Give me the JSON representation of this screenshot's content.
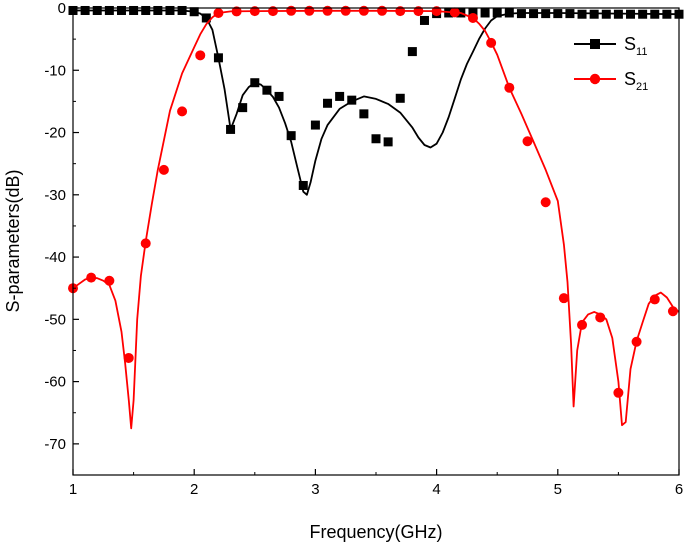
{
  "chart_data": {
    "type": "line",
    "xlabel": "Frequency(GHz)",
    "ylabel": "S-parameters(dB)",
    "xlim": [
      1,
      6
    ],
    "ylim": [
      -75,
      0
    ],
    "xticks": [
      1,
      2,
      3,
      4,
      5,
      6
    ],
    "yticks": [
      0,
      -10,
      -20,
      -30,
      -40,
      -50,
      -60,
      -70
    ],
    "grid": false,
    "legend_position": "top-right",
    "series": [
      {
        "name": "S11",
        "name_main": "S",
        "name_sub": "11",
        "color": "#000000",
        "marker": "square",
        "curve_x": [
          1.0,
          1.5,
          1.8,
          1.9,
          2.0,
          2.05,
          2.1,
          2.15,
          2.2,
          2.25,
          2.3,
          2.35,
          2.4,
          2.45,
          2.5,
          2.55,
          2.6,
          2.65,
          2.7,
          2.75,
          2.8,
          2.85,
          2.9,
          2.93,
          2.96,
          3.0,
          3.05,
          3.1,
          3.2,
          3.3,
          3.4,
          3.5,
          3.6,
          3.7,
          3.8,
          3.85,
          3.9,
          3.95,
          4.0,
          4.05,
          4.1,
          4.15,
          4.2,
          4.25,
          4.3,
          4.35,
          4.4,
          4.45,
          4.5,
          4.6,
          4.7,
          5.0,
          5.5,
          6.0
        ],
        "curve_y": [
          -0.4,
          -0.4,
          -0.4,
          -0.4,
          -0.6,
          -0.9,
          -1.6,
          -3.5,
          -8.0,
          -13.0,
          -19.5,
          -17.0,
          -14.0,
          -12.7,
          -12.0,
          -12.3,
          -13.2,
          -14.3,
          -16.0,
          -18.5,
          -21.5,
          -25.5,
          -29.5,
          -30.0,
          -28.0,
          -24.5,
          -21.0,
          -18.8,
          -16.2,
          -15.0,
          -14.2,
          -14.6,
          -15.4,
          -16.8,
          -19.2,
          -20.8,
          -22.0,
          -22.4,
          -21.8,
          -20.0,
          -17.5,
          -14.5,
          -11.5,
          -9.0,
          -7.0,
          -5.0,
          -3.3,
          -2.0,
          -1.3,
          -0.9,
          -0.8,
          -0.8,
          -0.9,
          -1.0
        ],
        "marker_x": [
          1.0,
          1.1,
          1.2,
          1.3,
          1.4,
          1.5,
          1.6,
          1.7,
          1.8,
          1.9,
          2.0,
          2.1,
          2.2,
          2.3,
          2.4,
          2.5,
          2.6,
          2.7,
          2.8,
          2.9,
          3.0,
          3.1,
          3.2,
          3.3,
          3.4,
          3.5,
          3.6,
          3.7,
          3.8,
          3.9,
          4.0,
          4.1,
          4.2,
          4.3,
          4.4,
          4.5,
          4.6,
          4.7,
          4.8,
          4.9,
          5.0,
          5.1,
          5.2,
          5.3,
          5.4,
          5.5,
          5.6,
          5.7,
          5.8,
          5.9,
          6.0
        ],
        "marker_y": [
          -0.4,
          -0.4,
          -0.4,
          -0.4,
          -0.4,
          -0.4,
          -0.4,
          -0.4,
          -0.4,
          -0.4,
          -0.6,
          -1.6,
          -8.0,
          -19.5,
          -16.0,
          -12.0,
          -13.2,
          -14.2,
          -20.5,
          -28.5,
          -18.8,
          -15.3,
          -14.2,
          -14.8,
          -17.0,
          -21.0,
          -21.5,
          -14.5,
          -7.0,
          -2.0,
          -0.9,
          -0.8,
          -0.8,
          -0.8,
          -0.8,
          -0.8,
          -0.8,
          -0.9,
          -0.9,
          -0.9,
          -0.9,
          -0.9,
          -1.0,
          -1.0,
          -1.0,
          -1.0,
          -1.0,
          -1.0,
          -1.0,
          -1.0,
          -1.0
        ]
      },
      {
        "name": "S21",
        "name_main": "S",
        "name_sub": "21",
        "color": "#ff0000",
        "marker": "circle",
        "curve_x": [
          1.0,
          1.05,
          1.1,
          1.15,
          1.2,
          1.25,
          1.3,
          1.35,
          1.4,
          1.43,
          1.46,
          1.48,
          1.5,
          1.53,
          1.56,
          1.6,
          1.65,
          1.7,
          1.8,
          1.9,
          2.0,
          2.05,
          2.1,
          2.15,
          2.2,
          2.3,
          2.5,
          3.0,
          3.5,
          4.0,
          4.2,
          4.3,
          4.35,
          4.4,
          4.45,
          4.5,
          4.6,
          4.7,
          4.8,
          4.9,
          5.0,
          5.05,
          5.08,
          5.11,
          5.13,
          5.16,
          5.2,
          5.25,
          5.3,
          5.35,
          5.4,
          5.45,
          5.5,
          5.53,
          5.56,
          5.6,
          5.65,
          5.7,
          5.75,
          5.8,
          5.85,
          5.9,
          5.95,
          6.0
        ],
        "curve_y": [
          -45.0,
          -44.3,
          -43.6,
          -43.3,
          -43.4,
          -43.8,
          -44.5,
          -47.0,
          -52.0,
          -57.0,
          -63.0,
          -67.5,
          -63.0,
          -50.0,
          -43.0,
          -37.5,
          -31.5,
          -26.0,
          -16.5,
          -10.5,
          -6.3,
          -4.2,
          -2.6,
          -1.5,
          -0.8,
          -0.55,
          -0.5,
          -0.45,
          -0.45,
          -0.5,
          -0.8,
          -1.6,
          -2.5,
          -3.7,
          -5.5,
          -7.5,
          -12.8,
          -17.0,
          -21.5,
          -26.0,
          -31.0,
          -38.0,
          -44.0,
          -54.0,
          -64.0,
          -55.0,
          -50.5,
          -49.2,
          -48.8,
          -49.2,
          -50.0,
          -53.0,
          -60.0,
          -67.0,
          -66.5,
          -58.0,
          -53.5,
          -50.5,
          -47.5,
          -46.2,
          -45.7,
          -46.5,
          -48.0,
          -48.8
        ],
        "marker_x": [
          1.0,
          1.15,
          1.3,
          1.46,
          1.6,
          1.75,
          1.9,
          2.05,
          2.2,
          2.35,
          2.5,
          2.65,
          2.8,
          2.95,
          3.1,
          3.25,
          3.4,
          3.55,
          3.7,
          3.85,
          4.0,
          4.15,
          4.3,
          4.45,
          4.6,
          4.75,
          4.9,
          5.05,
          5.2,
          5.35,
          5.5,
          5.65,
          5.8,
          5.95
        ],
        "marker_y": [
          -45.0,
          -43.3,
          -43.8,
          -56.2,
          -37.8,
          -26.0,
          -16.6,
          -7.6,
          -0.8,
          -0.55,
          -0.5,
          -0.5,
          -0.45,
          -0.45,
          -0.45,
          -0.45,
          -0.45,
          -0.45,
          -0.5,
          -0.5,
          -0.5,
          -0.7,
          -1.6,
          -5.6,
          -12.8,
          -21.4,
          -31.2,
          -46.6,
          -50.9,
          -49.7,
          -61.8,
          -53.6,
          -46.8,
          -48.7
        ]
      }
    ]
  }
}
